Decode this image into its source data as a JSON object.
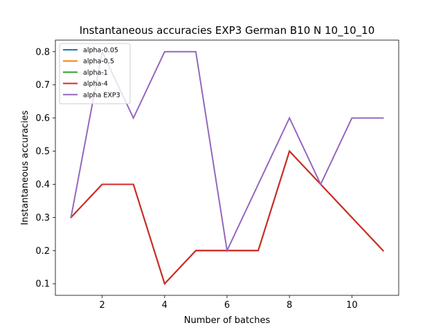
{
  "chart_data": {
    "type": "line",
    "title": "Instantaneous accuracies EXP3 German B10 N 10_10_10",
    "xlabel": "Number of batches",
    "ylabel": "Instantaneous accuracies",
    "x": [
      1,
      2,
      3,
      4,
      5,
      6,
      7,
      8,
      9,
      10,
      11
    ],
    "xlim": [
      0.5,
      11.5
    ],
    "ylim": [
      0.065,
      0.835
    ],
    "xticks": [
      2,
      4,
      6,
      8,
      10
    ],
    "xtick_labels": [
      "2",
      "4",
      "6",
      "8",
      "10"
    ],
    "yticks": [
      0.1,
      0.2,
      0.3,
      0.4,
      0.5,
      0.6,
      0.7,
      0.8
    ],
    "ytick_labels": [
      "0.1",
      "0.2",
      "0.3",
      "0.4",
      "0.5",
      "0.6",
      "0.7",
      "0.8"
    ],
    "grid": false,
    "legend_position": "top-left",
    "series": [
      {
        "name": "alpha-0.05",
        "color": "#1f77b4",
        "values": [
          0.3,
          0.4,
          0.4,
          0.1,
          0.2,
          0.2,
          0.2,
          0.5,
          0.4,
          0.3,
          0.2
        ]
      },
      {
        "name": "alpha-0.5",
        "color": "#ff7f0e",
        "values": [
          0.3,
          0.4,
          0.4,
          0.1,
          0.2,
          0.2,
          0.2,
          0.5,
          0.4,
          0.3,
          0.2
        ]
      },
      {
        "name": "alpha-1",
        "color": "#2ca02c",
        "values": [
          0.3,
          0.4,
          0.4,
          0.1,
          0.2,
          0.2,
          0.2,
          0.5,
          0.4,
          0.3,
          0.2
        ]
      },
      {
        "name": "alpha-4",
        "color": "#d62728",
        "values": [
          0.3,
          0.4,
          0.4,
          0.1,
          0.2,
          0.2,
          0.2,
          0.5,
          0.4,
          0.3,
          0.2
        ]
      },
      {
        "name": "alpha EXP3",
        "color": "#9467bd",
        "values": [
          0.3,
          0.8,
          0.6,
          0.8,
          0.8,
          0.2,
          0.4,
          0.6,
          0.4,
          0.6,
          0.6
        ]
      }
    ]
  }
}
